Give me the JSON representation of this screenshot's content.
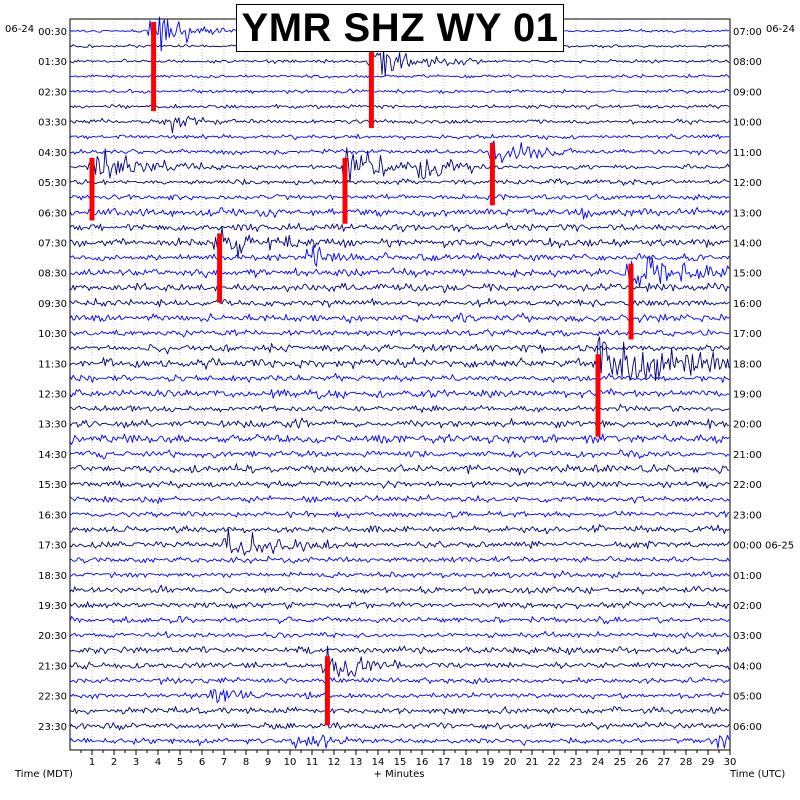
{
  "chart_data": {
    "type": "helicorder",
    "title": "YMR SHZ WY 01",
    "date_left": "06-24",
    "date_right": "06-24",
    "xlabel": "+ Minutes",
    "left_axis_label": "Time (MDT)",
    "right_axis_label": "Time (UTC)",
    "xlim": [
      0,
      30
    ],
    "x_tick_labels": [
      "1",
      "2",
      "3",
      "4",
      "5",
      "6",
      "7",
      "8",
      "9",
      "10",
      "11",
      "12",
      "13",
      "14",
      "15",
      "16",
      "17",
      "18",
      "19",
      "20",
      "21",
      "22",
      "23",
      "24",
      "25",
      "26",
      "27",
      "28",
      "29",
      "30"
    ],
    "left_hour_labels": [
      "00:30",
      "01:30",
      "02:30",
      "03:30",
      "04:30",
      "05:30",
      "06:30",
      "07:30",
      "08:30",
      "09:30",
      "10:30",
      "11:30",
      "12:30",
      "13:30",
      "14:30",
      "15:30",
      "16:30",
      "17:30",
      "18:30",
      "19:30",
      "20:30",
      "21:30",
      "22:30",
      "23:30"
    ],
    "right_hour_labels": [
      "07:00",
      "08:00",
      "09:00",
      "10:00",
      "11:00",
      "12:00",
      "13:00",
      "14:00",
      "15:00",
      "16:00",
      "17:00",
      "18:00",
      "19:00",
      "20:00",
      "21:00",
      "22:00",
      "23:00",
      "00:00 06-25",
      "01:00",
      "02:00",
      "03:00",
      "04:00",
      "05:00",
      "06:00"
    ],
    "trace_colors": [
      "#0000ff",
      "#000080",
      "#00007a",
      "#0000ff"
    ],
    "clip_color": "#ff0000",
    "trace_count": 48,
    "events": [
      {
        "minute": 3.8,
        "row": 0,
        "amplitude": 2.0,
        "duration": 1.5
      },
      {
        "minute": 13.7,
        "row": 2,
        "amplitude": 1.6,
        "duration": 2.0
      },
      {
        "minute": 4.5,
        "row": 6,
        "amplitude": 1.0,
        "duration": 1.2
      },
      {
        "minute": 1.0,
        "row": 9,
        "amplitude": 1.2,
        "duration": 2.5
      },
      {
        "minute": 12.5,
        "row": 9,
        "amplitude": 1.3,
        "duration": 2.0
      },
      {
        "minute": 16.0,
        "row": 9,
        "amplitude": 1.0,
        "duration": 1.5
      },
      {
        "minute": 19.2,
        "row": 8,
        "amplitude": 1.2,
        "duration": 1.5
      },
      {
        "minute": 6.8,
        "row": 14,
        "amplitude": 1.4,
        "duration": 2.0
      },
      {
        "minute": 10.8,
        "row": 15,
        "amplitude": 0.9,
        "duration": 1.5
      },
      {
        "minute": 25.5,
        "row": 16,
        "amplitude": 1.6,
        "duration": 2.0
      },
      {
        "minute": 24.0,
        "row": 22,
        "amplitude": 1.8,
        "duration": 4.0
      },
      {
        "minute": 7.2,
        "row": 34,
        "amplitude": 1.1,
        "duration": 2.0
      },
      {
        "minute": 11.7,
        "row": 42,
        "amplitude": 1.4,
        "duration": 1.5
      },
      {
        "minute": 6.5,
        "row": 44,
        "amplitude": 0.9,
        "duration": 1.0
      },
      {
        "minute": 10.2,
        "row": 47,
        "amplitude": 0.8,
        "duration": 1.0
      },
      {
        "minute": 29.3,
        "row": 47,
        "amplitude": 0.8,
        "duration": 1.0
      }
    ]
  }
}
